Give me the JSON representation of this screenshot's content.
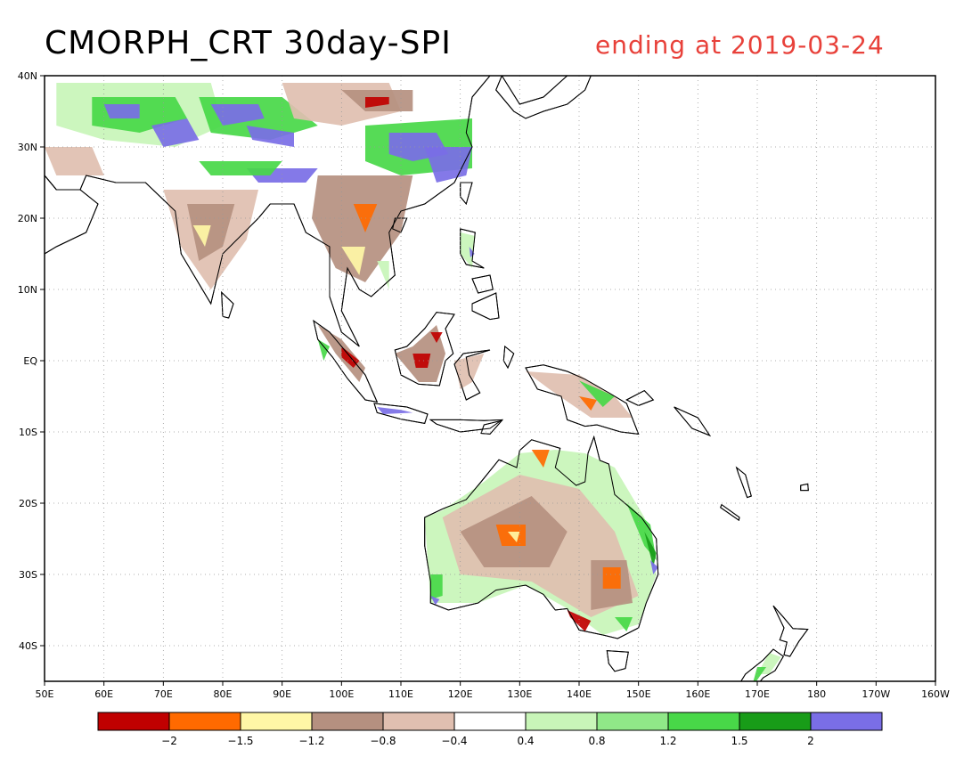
{
  "header": {
    "title": "CMORPH_CRT 30day-SPI",
    "date_text": "ending at 2019-03-24",
    "date_color": "#e8413a"
  },
  "map": {
    "extent": {
      "lon_min": 50,
      "lon_max": 200,
      "lat_min": -45,
      "lat_max": 40
    },
    "gridlines": "dotted",
    "lat_ticks": [
      {
        "value": 40,
        "label": "40N"
      },
      {
        "value": 30,
        "label": "30N"
      },
      {
        "value": 20,
        "label": "20N"
      },
      {
        "value": 10,
        "label": "10N"
      },
      {
        "value": 0,
        "label": "EQ"
      },
      {
        "value": -10,
        "label": "10S"
      },
      {
        "value": -20,
        "label": "20S"
      },
      {
        "value": -30,
        "label": "30S"
      },
      {
        "value": -40,
        "label": "40S"
      }
    ],
    "lon_ticks": [
      {
        "value": 50,
        "label": "50E"
      },
      {
        "value": 60,
        "label": "60E"
      },
      {
        "value": 70,
        "label": "70E"
      },
      {
        "value": 80,
        "label": "80E"
      },
      {
        "value": 90,
        "label": "90E"
      },
      {
        "value": 100,
        "label": "100E"
      },
      {
        "value": 110,
        "label": "110E"
      },
      {
        "value": 120,
        "label": "120E"
      },
      {
        "value": 130,
        "label": "130E"
      },
      {
        "value": 140,
        "label": "140E"
      },
      {
        "value": 150,
        "label": "150E"
      },
      {
        "value": 160,
        "label": "160E"
      },
      {
        "value": 170,
        "label": "170E"
      },
      {
        "value": 180,
        "label": "180"
      },
      {
        "value": 190,
        "label": "170W"
      },
      {
        "value": 200,
        "label": "160W"
      }
    ]
  },
  "colorbar": {
    "colors": [
      "#c00000",
      "#ff6a00",
      "#fff7a6",
      "#b59080",
      "#e0bfb0",
      "#ffffff",
      "#c8f5b8",
      "#90e888",
      "#48d848",
      "#189c18",
      "#7a6ee6"
    ],
    "labels": [
      "-2",
      "-1.5",
      "-1.2",
      "-0.8",
      "-0.4",
      "0.4",
      "0.8",
      "1.2",
      "1.5",
      "2"
    ]
  },
  "palette": {
    "land": "#ffffff",
    "dry_moderate": "#b59080",
    "dry_mild": "#e0bfb0",
    "wet_mild": "#c8f5b8",
    "wet_moderate": "#48d848",
    "wet_strong": "#189c18",
    "wet_extreme": "#7a6ee6",
    "dry_severe": "#ff6a00",
    "dry_extreme": "#c00000",
    "dry_pale": "#fff7a6"
  }
}
